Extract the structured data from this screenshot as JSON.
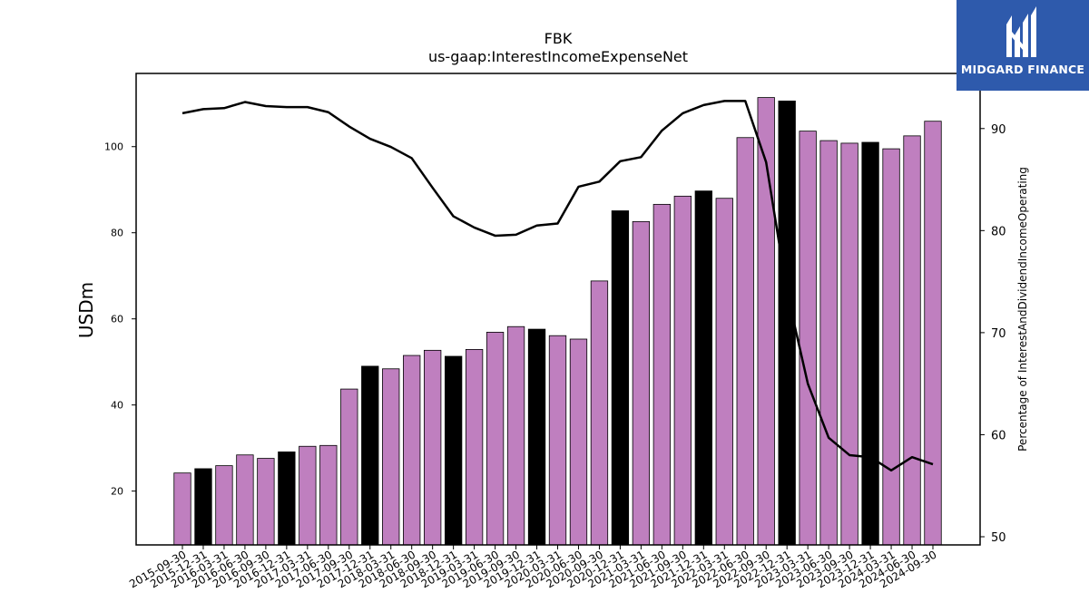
{
  "chart_data": {
    "type": "bar",
    "title": "FBK",
    "subtitle": "us-gaap:InterestIncomeExpenseNet",
    "ylabel": "USDm",
    "y2label": "Percentage of InterestAndDividendIncomeOperating",
    "ylim": [
      7.5,
      117
    ],
    "y2lim": [
      49.2,
      95.4
    ],
    "yticks": [
      20,
      40,
      60,
      80,
      100
    ],
    "y2ticks": [
      50,
      60,
      70,
      80,
      90
    ],
    "grid": false,
    "categories": [
      "2015-09-30",
      "2015-12-31",
      "2016-03-31",
      "2016-06-30",
      "2016-09-30",
      "2016-12-31",
      "2017-03-31",
      "2017-06-30",
      "2017-09-30",
      "2017-12-31",
      "2018-03-31",
      "2018-06-30",
      "2018-09-30",
      "2018-12-31",
      "2019-03-31",
      "2019-06-30",
      "2019-09-30",
      "2019-12-31",
      "2020-03-31",
      "2020-06-30",
      "2020-09-30",
      "2020-12-31",
      "2021-03-31",
      "2021-06-30",
      "2021-09-30",
      "2021-12-31",
      "2022-03-31",
      "2022-06-30",
      "2022-09-30",
      "2022-12-31",
      "2023-03-31",
      "2023-06-30",
      "2023-09-30",
      "2023-12-31",
      "2024-03-31",
      "2024-06-30",
      "2024-09-30"
    ],
    "series": [
      {
        "kind": "bar",
        "values": [
          24.2,
          25.2,
          25.9,
          28.4,
          27.6,
          29.1,
          30.4,
          30.6,
          43.7,
          49.0,
          48.4,
          51.5,
          52.7,
          51.3,
          52.9,
          56.9,
          58.2,
          57.6,
          56.1,
          55.3,
          68.8,
          85.1,
          82.6,
          86.6,
          88.5,
          89.7,
          88.0,
          102.1,
          111.4,
          110.6,
          103.6,
          101.4,
          100.8,
          101.0,
          99.5,
          102.5,
          105.9
        ],
        "colors": [
          "#bf7fbf",
          "#000000",
          "#bf7fbf",
          "#bf7fbf",
          "#bf7fbf",
          "#000000",
          "#bf7fbf",
          "#bf7fbf",
          "#bf7fbf",
          "#000000",
          "#bf7fbf",
          "#bf7fbf",
          "#bf7fbf",
          "#000000",
          "#bf7fbf",
          "#bf7fbf",
          "#bf7fbf",
          "#000000",
          "#bf7fbf",
          "#bf7fbf",
          "#bf7fbf",
          "#000000",
          "#bf7fbf",
          "#bf7fbf",
          "#bf7fbf",
          "#000000",
          "#bf7fbf",
          "#bf7fbf",
          "#bf7fbf",
          "#000000",
          "#bf7fbf",
          "#bf7fbf",
          "#bf7fbf",
          "#000000",
          "#bf7fbf",
          "#bf7fbf",
          "#bf7fbf"
        ]
      },
      {
        "kind": "line",
        "axis": "right",
        "color": "#000000",
        "values": [
          91.5,
          91.9,
          92.0,
          92.6,
          92.2,
          92.1,
          92.1,
          91.6,
          90.2,
          89.0,
          88.2,
          87.1,
          84.2,
          81.4,
          80.3,
          79.5,
          79.6,
          80.5,
          80.7,
          84.3,
          84.8,
          86.8,
          87.2,
          89.8,
          91.5,
          92.3,
          92.7,
          92.7,
          86.7,
          74.0,
          65.0,
          59.7,
          58.0,
          57.8,
          56.5,
          57.8,
          57.1
        ]
      }
    ]
  },
  "logo": {
    "name": "MIDGARD FINANCE"
  }
}
